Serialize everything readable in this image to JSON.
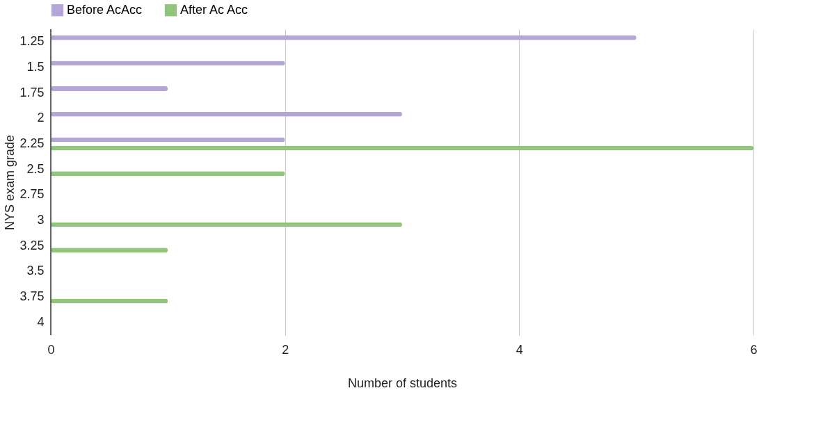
{
  "chart_data": {
    "type": "bar",
    "orientation": "horizontal",
    "xlabel": "Number of students",
    "ylabel": "NYS exam grade",
    "categories": [
      "1.25",
      "1.5",
      "1.75",
      "2",
      "2.25",
      "2.5",
      "2.75",
      "3",
      "3.25",
      "3.5",
      "3.75",
      "4"
    ],
    "series": [
      {
        "name": "Before AcAcc",
        "color": "#b4a7d6",
        "values": [
          5,
          2,
          1,
          3,
          2,
          null,
          null,
          null,
          null,
          null,
          null,
          null
        ]
      },
      {
        "name": "After Ac Acc",
        "color": "#93c47d",
        "values": [
          null,
          null,
          null,
          null,
          6,
          2,
          null,
          3,
          1,
          null,
          1,
          null
        ]
      }
    ],
    "xlim": [
      0,
      6
    ],
    "xticks": [
      0,
      2,
      4,
      6
    ],
    "grid": "x",
    "legend": "top"
  }
}
